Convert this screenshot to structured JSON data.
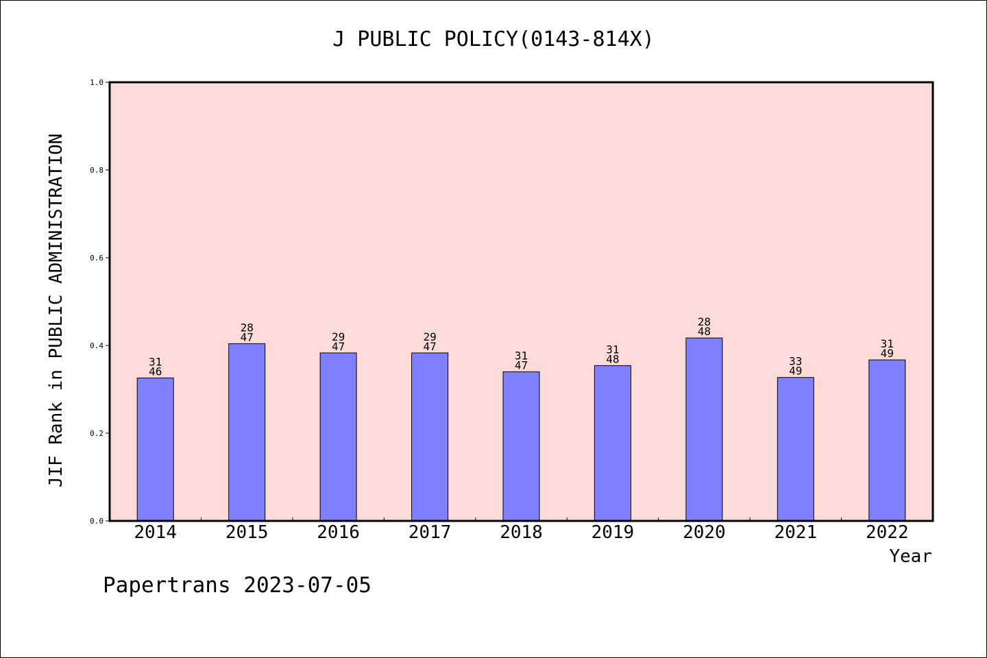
{
  "chart_data": {
    "type": "bar",
    "title": "J PUBLIC POLICY(0143-814X)",
    "xlabel": "Year",
    "ylabel": "JIF Rank in PUBLIC ADMINISTRATION",
    "ylim": [
      0.0,
      1.0
    ],
    "yticks": [
      "0.0",
      "0.2",
      "0.4",
      "0.6",
      "0.8",
      "1.0"
    ],
    "categories": [
      "2014",
      "2015",
      "2016",
      "2017",
      "2018",
      "2019",
      "2020",
      "2021",
      "2022"
    ],
    "values": [
      0.326,
      0.404,
      0.383,
      0.383,
      0.34,
      0.354,
      0.417,
      0.327,
      0.367
    ],
    "rank_labels": [
      "31",
      "28",
      "29",
      "29",
      "31",
      "31",
      "28",
      "33",
      "31"
    ],
    "total_labels": [
      "46",
      "47",
      "47",
      "47",
      "47",
      "48",
      "48",
      "49",
      "49"
    ],
    "grid": false,
    "legend": "none",
    "colors": {
      "plot_background": "#fddbd8",
      "bar_fill": "#8080ff",
      "bar_stroke": "#000000"
    }
  },
  "footer": {
    "text": "Papertrans 2023-07-05"
  }
}
